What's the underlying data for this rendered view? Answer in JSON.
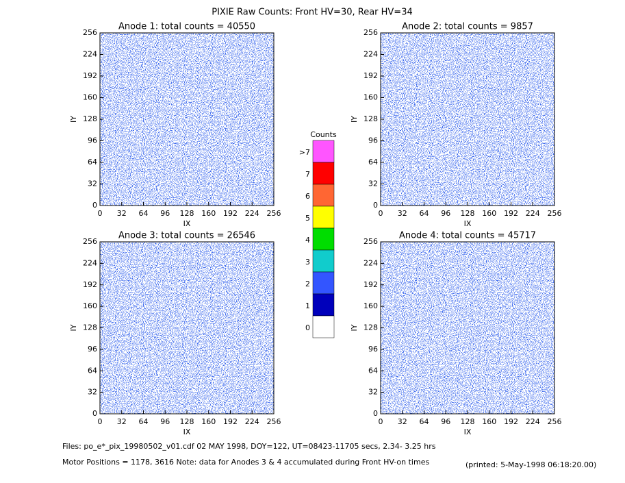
{
  "title": "PIXIE Raw Counts:  Front HV=30, Rear HV=34",
  "chart_data": [
    {
      "type": "heatmap",
      "title": "Anode 1: total counts = 40550",
      "xlabel": "IX",
      "ylabel": "IY",
      "xlim": [
        0,
        256
      ],
      "ylim": [
        0,
        256
      ],
      "xticks": [
        0,
        32,
        64,
        96,
        128,
        160,
        192,
        224,
        256
      ],
      "yticks": [
        0,
        32,
        64,
        96,
        128,
        160,
        192,
        224,
        256
      ]
    },
    {
      "type": "heatmap",
      "title": "Anode 2: total counts = 9857",
      "xlabel": "IX",
      "ylabel": "IY",
      "xlim": [
        0,
        256
      ],
      "ylim": [
        0,
        256
      ],
      "xticks": [
        0,
        32,
        64,
        96,
        128,
        160,
        192,
        224,
        256
      ],
      "yticks": [
        0,
        32,
        64,
        96,
        128,
        160,
        192,
        224,
        256
      ]
    },
    {
      "type": "heatmap",
      "title": "Anode 3: total counts = 26546",
      "xlabel": "IX",
      "ylabel": "IY",
      "xlim": [
        0,
        256
      ],
      "ylim": [
        0,
        256
      ],
      "xticks": [
        0,
        32,
        64,
        96,
        128,
        160,
        192,
        224,
        256
      ],
      "yticks": [
        0,
        32,
        64,
        96,
        128,
        160,
        192,
        224,
        256
      ]
    },
    {
      "type": "heatmap",
      "title": "Anode 4: total counts = 45717",
      "xlabel": "IX",
      "ylabel": "IY",
      "xlim": [
        0,
        256
      ],
      "ylim": [
        0,
        256
      ],
      "xticks": [
        0,
        32,
        64,
        96,
        128,
        160,
        192,
        224,
        256
      ],
      "yticks": [
        0,
        32,
        64,
        96,
        128,
        160,
        192,
        224,
        256
      ]
    }
  ],
  "colorbar": {
    "title": "Counts",
    "labels": [
      ">7",
      "7",
      "6",
      "5",
      "4",
      "3",
      "2",
      "1",
      "0"
    ],
    "colors": [
      "#ff55ff",
      "#ff0000",
      "#ff6633",
      "#ffff00",
      "#00dd00",
      "#11cccc",
      "#3355ff",
      "#0000bb",
      "#ffffff"
    ]
  },
  "footer": {
    "files": "Files: po_e*_pix_19980502_v01.cdf     02 MAY 1998, DOY=122, UT=08423-11705 secs,  2.34- 3.25 hrs",
    "motor": "Motor Positions = 1178, 3616    Note: data for Anodes 3 & 4 accumulated during Front HV-on times",
    "printed": "(printed:  5-May-1998 06:18:20.00)"
  }
}
